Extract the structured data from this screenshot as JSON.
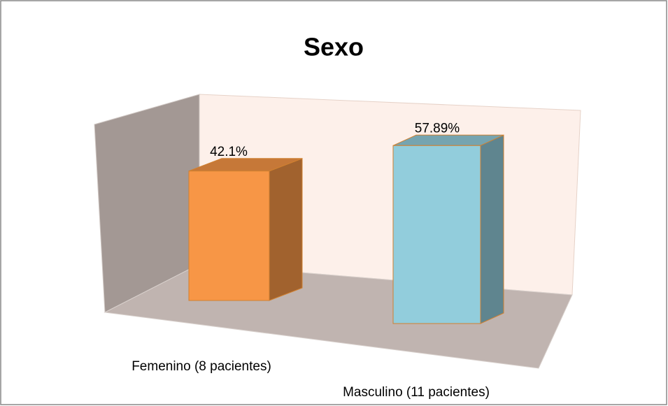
{
  "chart_data": {
    "type": "bar",
    "title": "Sexo",
    "categories": [
      "Femenino (8 pacientes)",
      "Masculino (11 pacientes)"
    ],
    "values": [
      42.1,
      57.89
    ],
    "value_labels": [
      "42.1%",
      "57.89%"
    ],
    "colors": [
      "#f79646",
      "#92cddc"
    ]
  }
}
